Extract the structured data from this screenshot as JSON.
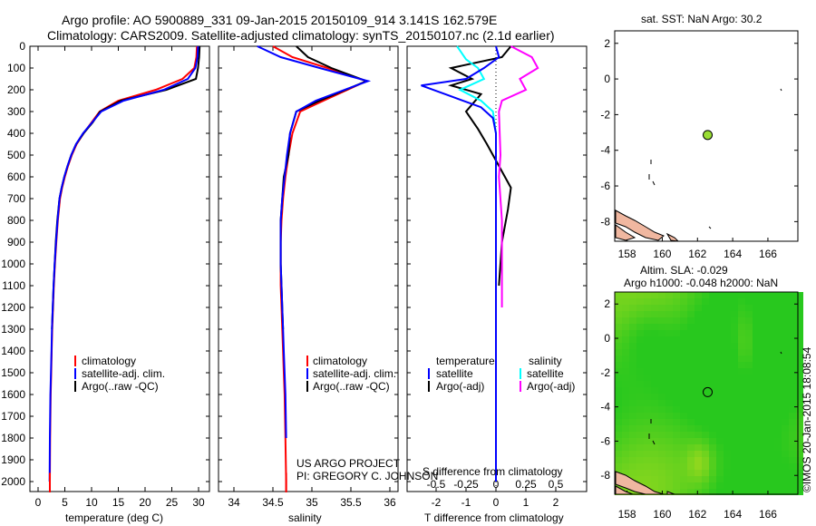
{
  "title": {
    "line1": "Argo profile: AO 5900889_331 09-Jan-2015 20150109_914 3.141S 162.579E",
    "line2": "Climatology: CARS2009. Satellite-adjusted climatology: synTS_20150107.nc (2.1d earlier)"
  },
  "colors": {
    "climatology": "#ff0000",
    "satellite": "#0000ff",
    "argo": "#000000",
    "sat_salinity": "#00ffff",
    "argo_salinity": "#ff00ff"
  },
  "depth_ticks": [
    0,
    100,
    200,
    300,
    400,
    500,
    600,
    700,
    800,
    900,
    1000,
    1100,
    1200,
    1300,
    1400,
    1500,
    1600,
    1700,
    1800,
    1900,
    2000
  ],
  "temperature_panel": {
    "xlabel": "temperature (deg C)",
    "xticks": [
      "0",
      "5",
      "10",
      "15",
      "20",
      "25",
      "30"
    ],
    "legend": [
      "climatology",
      "satellite-adj. clim.",
      "Argo(..raw -QC)"
    ]
  },
  "salinity_panel": {
    "xlabel": "salinity",
    "xticks": [
      "34",
      "34.5",
      "35",
      "35.5",
      "36"
    ],
    "legend": [
      "climatology",
      "satellite-adj. clim.",
      "Argo(..raw -QC)"
    ],
    "credit_line1": "US ARGO PROJECT",
    "credit_line2": "PI: GREGORY C. JOHNSON"
  },
  "difference_panel": {
    "top_label": "S difference from climatology",
    "top_ticks": [
      "-0.5",
      "-0.25",
      "0",
      "0.25",
      "0.5"
    ],
    "xlabel": "T difference from climatology",
    "xticks": [
      "-2",
      "-1",
      "0",
      "1",
      "2"
    ],
    "legend_temp_head": "temperature",
    "legend_temp": [
      "satellite",
      "Argo(-adj)"
    ],
    "legend_sal_head": "salinity",
    "legend_sal": [
      "satellite",
      "Argo(-adj)"
    ]
  },
  "sst_map": {
    "title": "sat. SST: NaN Argo: 30.2",
    "yticks": [
      "2",
      "0",
      "-2",
      "-4",
      "-6",
      "-8"
    ],
    "xticks": [
      "158",
      "160",
      "162",
      "164",
      "166"
    ],
    "float_lon": 162.579,
    "float_lat": -3.141
  },
  "sla_map": {
    "title_line1": "Altim. SLA: -0.029",
    "title_line2": "Argo h1000: -0.048 h2000: NaN",
    "yticks": [
      "2",
      "0",
      "-2",
      "-4",
      "-6",
      "-8"
    ],
    "xticks": [
      "158",
      "160",
      "162",
      "164",
      "166"
    ]
  },
  "watermark": "©IMOS 20-Jan-2015 18:08:54",
  "chart_data": [
    {
      "type": "line",
      "title": "",
      "xlabel": "temperature (deg C)",
      "ylabel": "",
      "xlim": [
        -1.5,
        31.5
      ],
      "ylim": [
        2050,
        0
      ],
      "series": [
        {
          "name": "climatology",
          "x": [
            29.7,
            29.6,
            29.2,
            27,
            22,
            15,
            11.5,
            10,
            8.5,
            7.2,
            6.3,
            5.6,
            5.0,
            4.5,
            4.1,
            3.7,
            3.4,
            3.15,
            2.95,
            2.8,
            2.65,
            2.55,
            2.45,
            2.35,
            2.25,
            2.2,
            2.2
          ],
          "y": [
            0,
            50,
            100,
            150,
            200,
            250,
            300,
            350,
            400,
            450,
            500,
            550,
            600,
            650,
            700,
            800,
            900,
            1000,
            1100,
            1200,
            1300,
            1400,
            1500,
            1600,
            1800,
            2000,
            2050
          ]
        },
        {
          "name": "satellite-adj. clim.",
          "x": [
            29.9,
            29.8,
            29.4,
            28.0,
            23.5,
            16,
            11.8,
            10.1,
            8.4,
            7.1,
            6.2,
            5.5,
            4.9,
            4.4,
            4.0,
            3.65,
            3.35,
            3.1,
            2.9,
            2.75,
            2.6,
            2.5,
            2.4,
            2.3,
            2.2,
            2.15
          ],
          "y": [
            0,
            50,
            100,
            150,
            200,
            250,
            300,
            350,
            400,
            450,
            500,
            550,
            600,
            650,
            700,
            800,
            900,
            1000,
            1100,
            1200,
            1300,
            1400,
            1500,
            1600,
            1800,
            2000
          ]
        },
        {
          "name": "Argo(..raw -QC)",
          "x": [
            30.2,
            30.1,
            29.9,
            29.5,
            24,
            15.5,
            11.6,
            10.2,
            8.5,
            7.1,
            6.2,
            5.5,
            4.9,
            4.4,
            4.0,
            3.6,
            3.3,
            3.1,
            2.9,
            2.75,
            2.6
          ],
          "y": [
            0,
            50,
            100,
            150,
            200,
            250,
            300,
            350,
            400,
            450,
            500,
            550,
            600,
            650,
            700,
            800,
            900,
            1000,
            1100,
            1200,
            1300
          ]
        }
      ]
    },
    {
      "type": "line",
      "title": "",
      "xlabel": "salinity",
      "ylabel": "",
      "xlim": [
        33.8,
        36.1
      ],
      "ylim": [
        2050,
        0
      ],
      "series": [
        {
          "name": "climatology",
          "x": [
            34.5,
            34.75,
            35.2,
            35.7,
            35.15,
            34.85,
            34.75,
            34.7,
            34.66,
            34.63,
            34.61,
            34.6,
            34.6,
            34.6,
            34.61,
            34.62,
            34.63,
            34.64,
            34.65,
            34.66,
            34.67,
            34.67
          ],
          "y": [
            0,
            50,
            100,
            160,
            250,
            300,
            400,
            500,
            600,
            700,
            800,
            900,
            1000,
            1100,
            1200,
            1300,
            1400,
            1500,
            1600,
            1800,
            2000,
            2050
          ]
        },
        {
          "name": "satellite-adj. clim.",
          "x": [
            34.3,
            34.6,
            35.1,
            35.72,
            35.05,
            34.8,
            34.72,
            34.68,
            34.65,
            34.62,
            34.6,
            34.6,
            34.6,
            34.61,
            34.62,
            34.63,
            34.64,
            34.65,
            34.66,
            34.67
          ],
          "y": [
            0,
            50,
            100,
            160,
            250,
            300,
            400,
            500,
            600,
            700,
            800,
            900,
            1000,
            1100,
            1200,
            1300,
            1400,
            1500,
            1600,
            1800
          ]
        },
        {
          "name": "Argo(..raw -QC)",
          "x": [
            34.8,
            34.95,
            35.25,
            35.7,
            35.1,
            34.8,
            34.72,
            34.7,
            34.64,
            34.62,
            34.6,
            34.6,
            34.6,
            34.61,
            34.62,
            34.63
          ],
          "y": [
            0,
            50,
            100,
            160,
            250,
            300,
            400,
            500,
            600,
            700,
            800,
            900,
            1000,
            1100,
            1200,
            1300
          ]
        }
      ]
    },
    {
      "type": "line",
      "title": "",
      "xlabel": "T difference from climatology",
      "ylabel": "",
      "xlim": [
        -2.9,
        2.9
      ],
      "ylim": [
        2050,
        0
      ],
      "series": [
        {
          "name": "temperature satellite",
          "x": [
            0,
            0.1,
            -0.4,
            -1.0,
            -2.5,
            -1.5,
            -0.5,
            -0.1,
            0,
            0,
            0,
            0,
            0,
            0,
            0
          ],
          "y": [
            0,
            50,
            100,
            150,
            180,
            230,
            280,
            330,
            400,
            500,
            700,
            1000,
            1400,
            1800,
            2000
          ]
        },
        {
          "name": "temperature Argo(-adj)",
          "x": [
            0.5,
            0.2,
            -1.5,
            -0.8,
            -1.5,
            -0.5,
            -1.0,
            -0.6,
            -0.3,
            0.1,
            0.5,
            0.4,
            0.2,
            0.1
          ],
          "y": [
            0,
            50,
            100,
            150,
            180,
            220,
            300,
            380,
            450,
            550,
            650,
            750,
            900,
            1100
          ]
        },
        {
          "name": "salinity satellite",
          "x": [
            -1.3,
            -1.0,
            -0.6,
            -0.4,
            -1.2,
            -0.5,
            -0.1,
            0,
            0,
            0,
            0,
            0,
            0,
            0
          ],
          "y": [
            0,
            60,
            100,
            150,
            200,
            250,
            300,
            400,
            500,
            700,
            1000,
            1400,
            1800,
            2000
          ]
        },
        {
          "name": "salinity Argo(-adj)",
          "x": [
            0.5,
            1.2,
            1.4,
            0.8,
            1.0,
            0.2,
            0.1,
            0.15,
            0.1,
            0.2,
            0.2,
            0.2
          ],
          "y": [
            0,
            50,
            100,
            150,
            200,
            250,
            300,
            500,
            600,
            800,
            1000,
            1200
          ]
        }
      ]
    }
  ]
}
